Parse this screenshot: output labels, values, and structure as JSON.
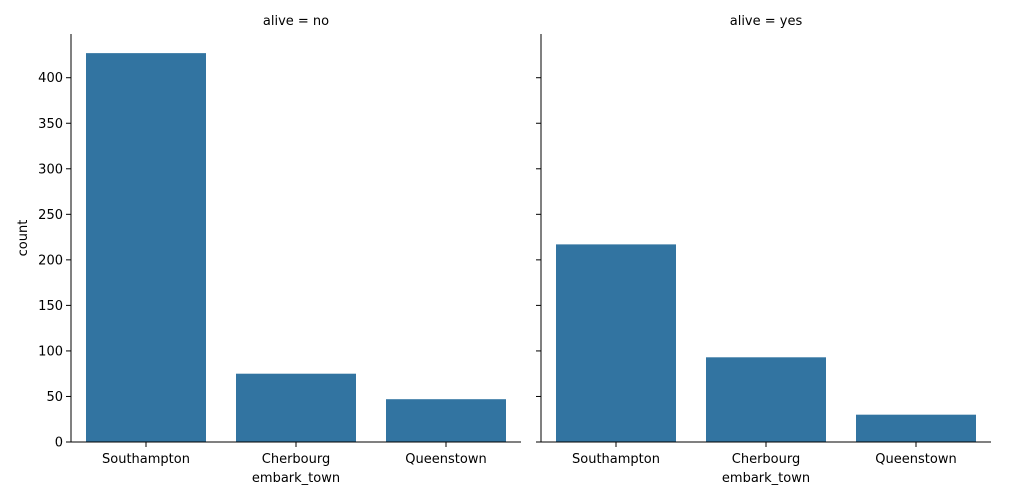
{
  "chart_data": {
    "type": "bar",
    "facet_by": "alive",
    "categories": [
      "Southampton",
      "Cherbourg",
      "Queenstown"
    ],
    "xlabel": "embark_town",
    "ylabel": "count",
    "ylim": [
      0,
      448
    ],
    "yticks": [
      0,
      50,
      100,
      150,
      200,
      250,
      300,
      350,
      400
    ],
    "grid": false,
    "bar_color": "#3274a1",
    "panels": [
      {
        "title": "alive = no",
        "values": [
          427,
          75,
          47
        ]
      },
      {
        "title": "alive = yes",
        "values": [
          217,
          93,
          30
        ]
      }
    ]
  }
}
